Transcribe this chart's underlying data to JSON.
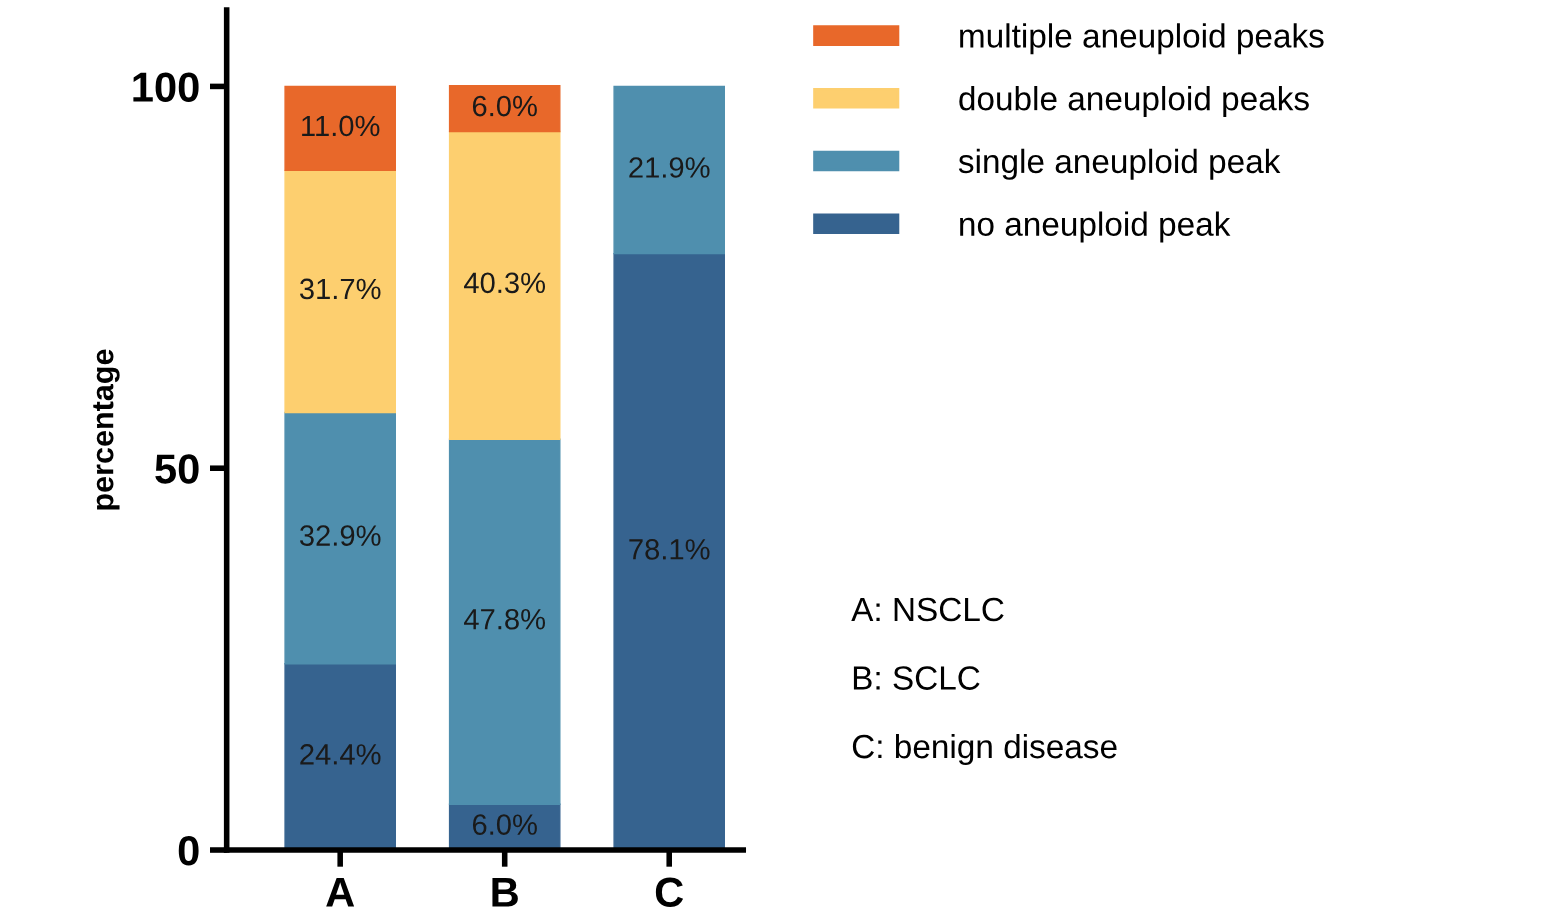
{
  "chart_data": {
    "type": "bar",
    "stacked": true,
    "ylabel": "percentage",
    "categories": [
      "A",
      "B",
      "C"
    ],
    "series": [
      {
        "name": "no aneuploid peak",
        "color": "#36638f",
        "values": [
          24.4,
          6.0,
          78.1
        ],
        "value_labels": [
          "24.4%",
          "6.0%",
          "78.1%"
        ]
      },
      {
        "name": "single aneuploid peak",
        "color": "#4f8fae",
        "values": [
          32.9,
          47.8,
          21.9
        ],
        "value_labels": [
          "32.9%",
          "47.8%",
          "21.9%"
        ]
      },
      {
        "name": "double aneuploid peaks",
        "color": "#fdcf6f",
        "values": [
          31.7,
          40.3,
          null
        ],
        "value_labels": [
          "31.7%",
          "40.3%",
          null
        ]
      },
      {
        "name": "multiple aneuploid peaks",
        "color": "#e8682a",
        "values": [
          11.0,
          6.0,
          null
        ],
        "value_labels": [
          "11.0%",
          "6.0%",
          null
        ]
      }
    ],
    "ylim": [
      0,
      110
    ],
    "yticks": [
      0,
      50,
      100
    ],
    "grid": false,
    "legend": "top right",
    "annotations": [
      "A: NSCLC",
      "B: SCLC",
      "C: benign disease"
    ]
  }
}
